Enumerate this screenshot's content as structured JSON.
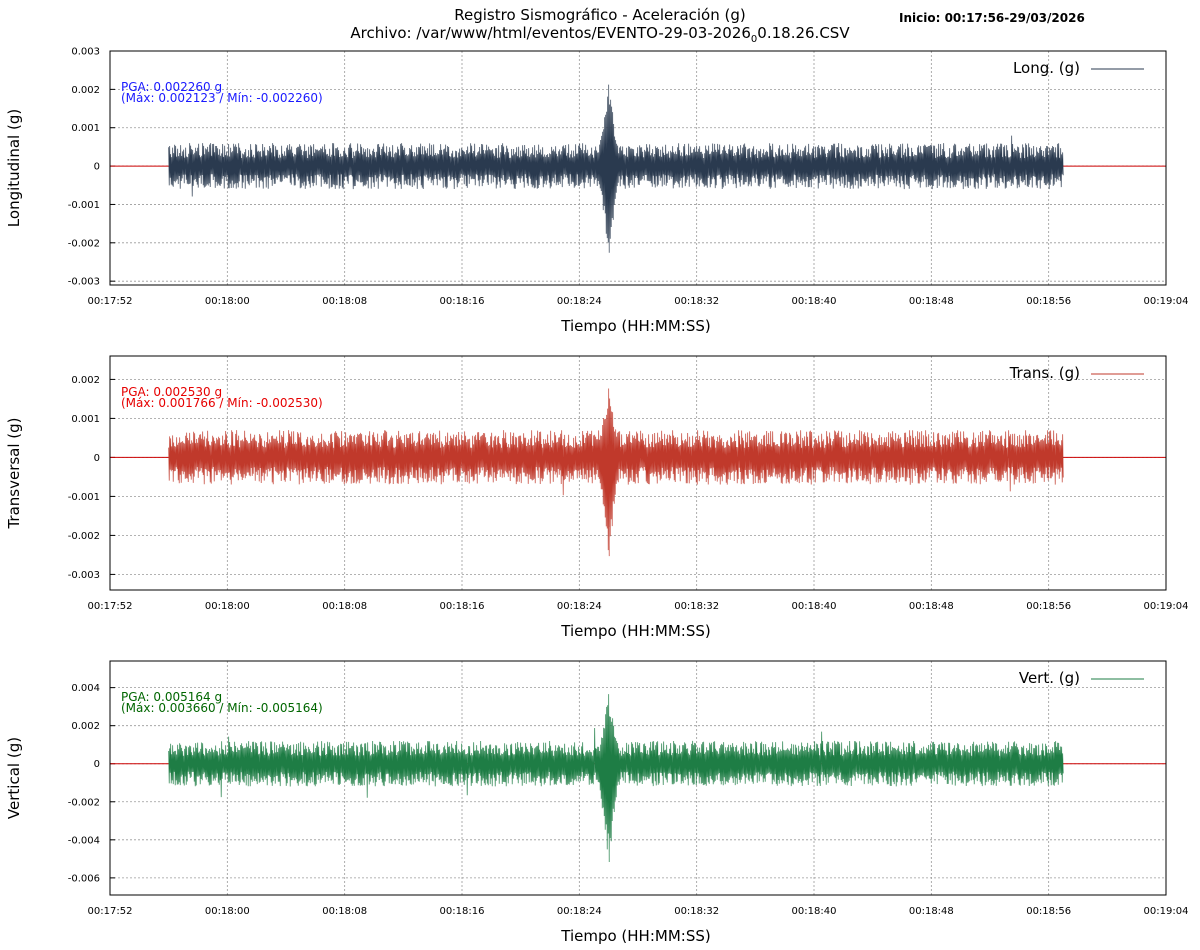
{
  "header": {
    "title_line1": "Registro Sismográfico - Aceleración (g)",
    "title_line2_main": "Archivo: /var/www/html/eventos/EVENTO-29-03-2026",
    "title_line2_sub": "0",
    "title_line2_tail": "0.18.26.CSV",
    "start_info": "Inicio: 00:17:56-29/03/2026"
  },
  "colors": {
    "longitudinal": "#2a3a4f",
    "transversal": "#c0392b",
    "vertical": "#1e7d45",
    "baseline": "#cc0000",
    "grid": "#999999"
  },
  "chart_data": [
    {
      "type": "line",
      "id": "longitudinal",
      "xlabel": "Tiempo (HH:MM:SS)",
      "ylabel": "Longitudinal (g)",
      "legend": "Long. (g)",
      "legend_position": "top-right",
      "grid": true,
      "x_range": [
        "00:17:52",
        "00:19:04"
      ],
      "x_ticks": [
        "00:17:52",
        "00:18:00",
        "00:18:08",
        "00:18:16",
        "00:18:24",
        "00:18:32",
        "00:18:40",
        "00:18:48",
        "00:18:56",
        "00:19:04"
      ],
      "y_ticks": [
        0.003,
        0.002,
        0.001,
        0,
        -0.001,
        -0.002,
        -0.003
      ],
      "y_tick_labels": [
        "0.003",
        "0.002",
        "0.001",
        "0",
        "-0.001",
        "-0.002",
        "-0.003"
      ],
      "ylim": [
        -0.0031,
        0.003
      ],
      "signal_start": "00:17:56",
      "signal_end": "00:18:57",
      "event_time": "00:18:26",
      "max": 0.002123,
      "min": -0.00226,
      "noise_amplitude": 0.0006,
      "pga_text": "PGA: 0.002260 g",
      "range_text": "(Máx: 0.002123 / Mín: -0.002260)"
    },
    {
      "type": "line",
      "id": "transversal",
      "xlabel": "Tiempo (HH:MM:SS)",
      "ylabel": "Transversal (g)",
      "legend": "Trans. (g)",
      "legend_position": "top-right",
      "grid": true,
      "x_range": [
        "00:17:52",
        "00:19:04"
      ],
      "x_ticks": [
        "00:17:52",
        "00:18:00",
        "00:18:08",
        "00:18:16",
        "00:18:24",
        "00:18:32",
        "00:18:40",
        "00:18:48",
        "00:18:56",
        "00:19:04"
      ],
      "y_ticks": [
        0.002,
        0.001,
        0,
        -0.001,
        -0.002,
        -0.003
      ],
      "y_tick_labels": [
        "0.002",
        "0.001",
        "0",
        "-0.001",
        "-0.002",
        "-0.003"
      ],
      "ylim": [
        -0.0034,
        0.0026
      ],
      "signal_start": "00:17:56",
      "signal_end": "00:18:57",
      "event_time": "00:18:26",
      "max": 0.001766,
      "min": -0.00253,
      "noise_amplitude": 0.0007,
      "pga_text": "PGA: 0.002530 g",
      "range_text": "(Máx: 0.001766 / Mín: -0.002530)"
    },
    {
      "type": "line",
      "id": "vertical",
      "xlabel": "Tiempo (HH:MM:SS)",
      "ylabel": "Vertical (g)",
      "legend": "Vert. (g)",
      "legend_position": "top-right",
      "grid": true,
      "x_range": [
        "00:17:52",
        "00:19:04"
      ],
      "x_ticks": [
        "00:17:52",
        "00:18:00",
        "00:18:08",
        "00:18:16",
        "00:18:24",
        "00:18:32",
        "00:18:40",
        "00:18:48",
        "00:18:56",
        "00:19:04"
      ],
      "y_ticks": [
        0.004,
        0.002,
        0,
        -0.002,
        -0.004,
        -0.006
      ],
      "y_tick_labels": [
        "0.004",
        "0.002",
        "0",
        "-0.002",
        "-0.004",
        "-0.006"
      ],
      "ylim": [
        -0.0069,
        0.0054
      ],
      "signal_start": "00:17:56",
      "signal_end": "00:18:57",
      "event_time": "00:18:26",
      "max": 0.00366,
      "min": -0.005164,
      "noise_amplitude": 0.0012,
      "pga_text": "PGA: 0.005164 g",
      "range_text": "(Máx: 0.003660 / Mín: -0.005164)"
    }
  ]
}
